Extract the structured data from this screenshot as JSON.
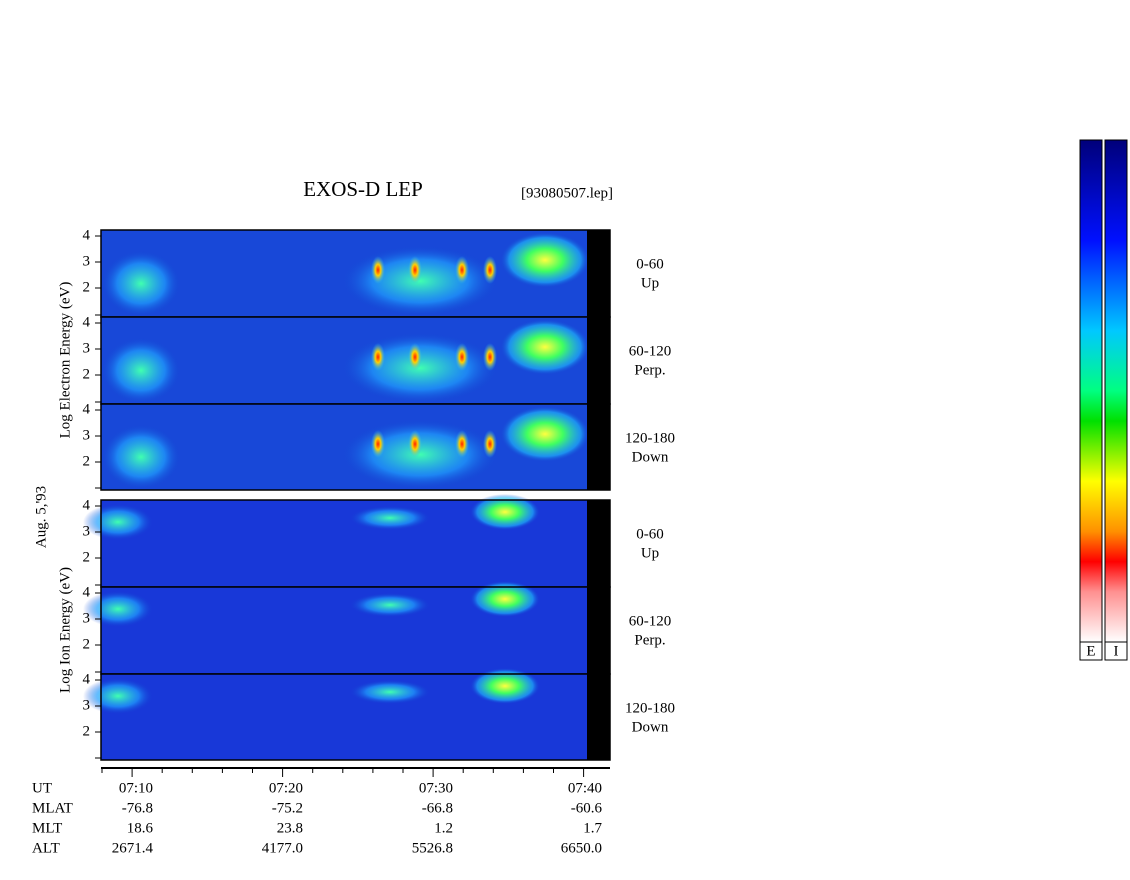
{
  "header": {
    "title": "EXOS-D LEP",
    "file": "[93080507.lep]"
  },
  "side_labels": {
    "electron": "Log Electron Energy (eV)",
    "date": "Aug. 5,'93",
    "ion": "Log Ion Energy (eV)"
  },
  "panels": [
    {
      "angle": "0-60",
      "direction": "Up",
      "yticks": [
        4,
        3,
        2
      ]
    },
    {
      "angle": "60-120",
      "direction": "Perp.",
      "yticks": [
        4,
        3,
        2
      ]
    },
    {
      "angle": "120-180",
      "direction": "Down",
      "yticks": [
        4,
        3,
        2
      ]
    },
    {
      "angle": "0-60",
      "direction": "Up",
      "yticks": [
        4,
        3,
        2
      ]
    },
    {
      "angle": "60-120",
      "direction": "Perp.",
      "yticks": [
        4,
        3,
        2
      ]
    },
    {
      "angle": "120-180",
      "direction": "Down",
      "yticks": [
        4,
        3,
        2
      ]
    }
  ],
  "orbit_table": {
    "rows": [
      {
        "label": "UT",
        "values": [
          "07:10",
          "07:20",
          "07:30",
          "07:40"
        ]
      },
      {
        "label": "MLAT",
        "values": [
          "-76.8",
          "-75.2",
          "-66.8",
          "-60.6"
        ]
      },
      {
        "label": "MLT",
        "values": [
          "18.6",
          "23.8",
          "1.2",
          "1.7"
        ]
      },
      {
        "label": "ALT",
        "values": [
          "2671.4",
          "4177.0",
          "5526.8",
          "6650.0"
        ]
      }
    ]
  },
  "colorbars": [
    "E",
    "I"
  ]
}
